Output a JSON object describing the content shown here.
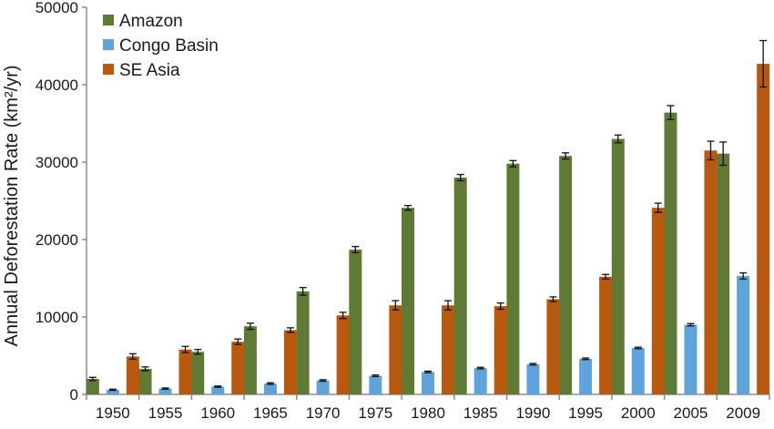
{
  "chart_data": {
    "type": "bar",
    "title": "",
    "xlabel": "",
    "ylabel": "Annual Deforestation Rate (km²/yr)",
    "ylim": [
      0,
      50000
    ],
    "yticks": [
      0,
      10000,
      20000,
      30000,
      40000,
      50000
    ],
    "grid": false,
    "legend_position": "top-left",
    "categories": [
      "1950",
      "1955",
      "1960",
      "1965",
      "1970",
      "1975",
      "1980",
      "1985",
      "1990",
      "1995",
      "2000",
      "2005",
      "2009"
    ],
    "series": [
      {
        "name": "Amazon",
        "color": "#5f7a35",
        "values": [
          2000,
          3300,
          5500,
          8800,
          13300,
          18700,
          24100,
          28000,
          29800,
          30800,
          33000,
          36400,
          31100
        ],
        "errors": [
          200,
          250,
          300,
          400,
          500,
          400,
          300,
          400,
          400,
          400,
          500,
          900,
          1500
        ]
      },
      {
        "name": "Congo Basin",
        "color": "#5fa3dd",
        "values": [
          600,
          750,
          1000,
          1400,
          1800,
          2400,
          2900,
          3400,
          3900,
          4600,
          6000,
          9000,
          15300
        ],
        "errors": [
          80,
          80,
          80,
          100,
          100,
          100,
          100,
          100,
          100,
          100,
          100,
          150,
          400
        ]
      },
      {
        "name": "SE Asia",
        "color": "#b8590f",
        "values": [
          4900,
          5800,
          6800,
          8300,
          10200,
          11500,
          11500,
          11400,
          12300,
          15200,
          24100,
          31500,
          42700
        ],
        "errors": [
          350,
          400,
          350,
          300,
          400,
          600,
          600,
          400,
          300,
          300,
          600,
          1200,
          3000
        ]
      }
    ]
  }
}
